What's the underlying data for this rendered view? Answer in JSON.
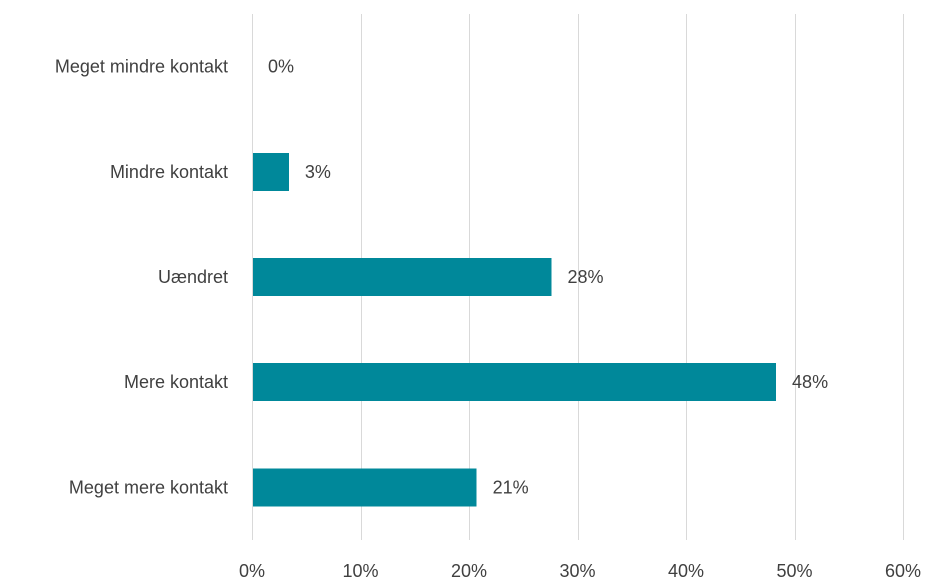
{
  "chart_data": {
    "type": "bar",
    "orientation": "horizontal",
    "categories": [
      "Meget mindre kontakt",
      "Mindre kontakt",
      "Uændret",
      "Mere kontakt",
      "Meget mere kontakt"
    ],
    "values": [
      0,
      3.4,
      27.6,
      48.3,
      20.7
    ],
    "data_labels": [
      "0%",
      "3%",
      "28%",
      "48%",
      "21%"
    ],
    "x_ticks": [
      0,
      10,
      20,
      30,
      40,
      50,
      60
    ],
    "x_tick_labels": [
      "0%",
      "10%",
      "20%",
      "30%",
      "40%",
      "50%",
      "60%"
    ],
    "xlim": [
      0,
      60
    ],
    "title": "",
    "xlabel": "",
    "ylabel": "",
    "grid": "vertical",
    "legend": "none",
    "bar_color": "#00889a"
  }
}
